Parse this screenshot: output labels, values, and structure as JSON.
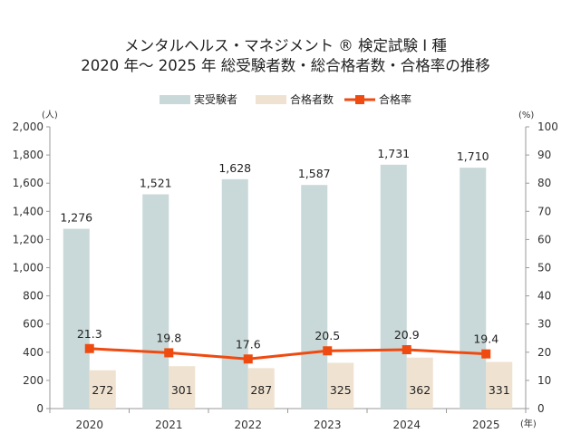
{
  "chart_data": {
    "type": "bar",
    "title": "メンタルヘルス・マネジメント ® 検定試験 Ⅰ 種",
    "subtitle": "2020 年〜 2025 年 総受験者数・総合格者数・合格率の推移",
    "categories": [
      "2020",
      "2021",
      "2022",
      "2023",
      "2024",
      "2025"
    ],
    "series": [
      {
        "name": "実受験者",
        "type": "bar",
        "axis": "left",
        "color": "#c9d8d8",
        "values": [
          1276,
          1521,
          1628,
          1587,
          1731,
          1710
        ],
        "labels": [
          "1,276",
          "1,521",
          "1,628",
          "1,587",
          "1,731",
          "1,710"
        ]
      },
      {
        "name": "合格者数",
        "type": "bar",
        "axis": "left",
        "color": "#efe2d0",
        "values": [
          272,
          301,
          287,
          325,
          362,
          331
        ],
        "labels": [
          "272",
          "301",
          "287",
          "325",
          "362",
          "331"
        ]
      },
      {
        "name": "合格率",
        "type": "line",
        "axis": "right",
        "color": "#ef4a10",
        "values": [
          21.3,
          19.8,
          17.6,
          20.5,
          20.9,
          19.4
        ],
        "labels": [
          "21.3",
          "19.8",
          "17.6",
          "20.5",
          "20.9",
          "19.4"
        ]
      }
    ],
    "left_axis": {
      "unit": "(人)",
      "ylim": [
        0,
        2000
      ],
      "ticks": [
        0,
        200,
        400,
        600,
        800,
        1000,
        1200,
        1400,
        1600,
        1800,
        2000
      ],
      "tick_labels": [
        "0",
        "200",
        "400",
        "600",
        "800",
        "1,000",
        "1,200",
        "1,400",
        "1,600",
        "1,800",
        "2,000"
      ]
    },
    "right_axis": {
      "unit": "(%)",
      "ylim": [
        0,
        100
      ],
      "ticks": [
        0,
        10,
        20,
        30,
        40,
        50,
        60,
        70,
        80,
        90,
        100
      ],
      "tick_labels": [
        "0",
        "10",
        "20",
        "30",
        "40",
        "50",
        "60",
        "70",
        "80",
        "90",
        "100"
      ]
    },
    "x_unit": "(年)",
    "legend_position": "top",
    "grid": false
  }
}
